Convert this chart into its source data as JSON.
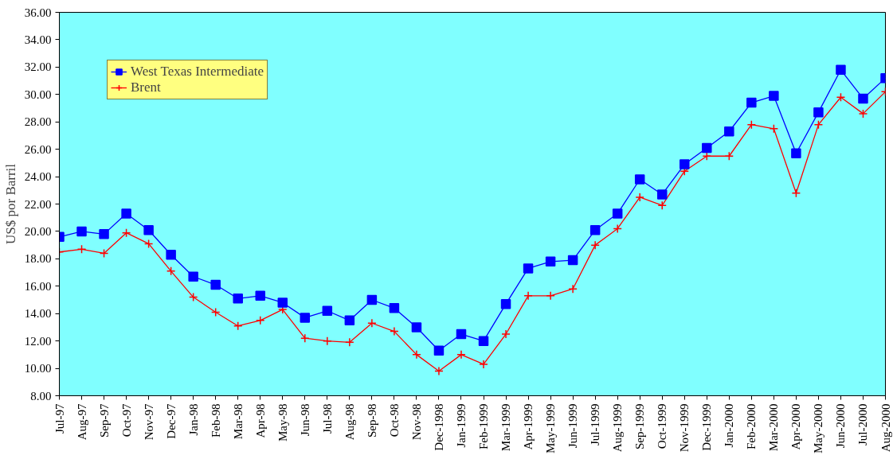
{
  "chart_data": {
    "type": "line",
    "ylabel": "US$ por Barril",
    "categories": [
      "Jul-97",
      "Aug-97",
      "Sep-97",
      "Oct-97",
      "Nov-97",
      "Dec-97",
      "Jan-98",
      "Feb-98",
      "Mar-98",
      "Apr-98",
      "May-98",
      "Jun-98",
      "Jul-98",
      "Aug-98",
      "Sep-98",
      "Oct-98",
      "Nov-98",
      "Dec-1998",
      "Jan-1999",
      "Feb-1999",
      "Mar-1999",
      "Apr-1999",
      "May-1999",
      "Jun-1999",
      "Jul-1999",
      "Aug-1999",
      "Sep-1999",
      "Oct-1999",
      "Nov-1999",
      "Dec-1999",
      "Jan-2000",
      "Feb-2000",
      "Mar-2000",
      "Apr-2000",
      "May-2000",
      "Jun-2000",
      "Jul-2000",
      "Aug-2000"
    ],
    "series": [
      {
        "name": "West Texas Intermediate",
        "color": "#0000ff",
        "marker": "square",
        "values": [
          19.6,
          20.0,
          19.8,
          21.3,
          20.1,
          18.3,
          16.7,
          16.1,
          15.1,
          15.3,
          14.8,
          13.7,
          14.2,
          13.5,
          15.0,
          14.4,
          13.0,
          11.3,
          12.5,
          12.0,
          14.7,
          17.3,
          17.8,
          17.9,
          20.1,
          21.3,
          23.8,
          22.7,
          24.9,
          26.1,
          27.3,
          29.4,
          29.9,
          25.7,
          28.7,
          31.8,
          29.7,
          31.2
        ]
      },
      {
        "name": "Brent",
        "color": "#ff0000",
        "marker": "cross",
        "values": [
          18.5,
          18.7,
          18.4,
          19.9,
          19.1,
          17.1,
          15.2,
          14.1,
          13.1,
          13.5,
          14.3,
          12.2,
          12.0,
          11.9,
          13.3,
          12.7,
          11.0,
          9.8,
          11.0,
          10.3,
          12.5,
          15.3,
          15.3,
          15.8,
          19.0,
          20.2,
          22.5,
          21.9,
          24.4,
          25.5,
          25.5,
          27.8,
          27.5,
          22.8,
          27.8,
          29.8,
          28.6,
          30.2
        ]
      }
    ],
    "ylim": [
      8,
      36
    ],
    "yticks": [
      {
        "value": 8,
        "label": "8.00"
      },
      {
        "value": 10,
        "label": "10.00"
      },
      {
        "value": 12,
        "label": "12.00"
      },
      {
        "value": 14,
        "label": "14.00"
      },
      {
        "value": 16,
        "label": "16.00"
      },
      {
        "value": 18,
        "label": "18.00"
      },
      {
        "value": 20,
        "label": "20.00"
      },
      {
        "value": 22,
        "label": "22.00"
      },
      {
        "value": 24,
        "label": "24.00"
      },
      {
        "value": 26,
        "label": "26.00"
      },
      {
        "value": 28,
        "label": "28.00"
      },
      {
        "value": 30,
        "label": "30.00"
      },
      {
        "value": 32,
        "label": "32.00"
      },
      {
        "value": 34,
        "label": "34.00"
      },
      {
        "value": 36,
        "label": "36.00"
      }
    ],
    "legend": "top left",
    "grid": false,
    "line_style": "solid"
  }
}
